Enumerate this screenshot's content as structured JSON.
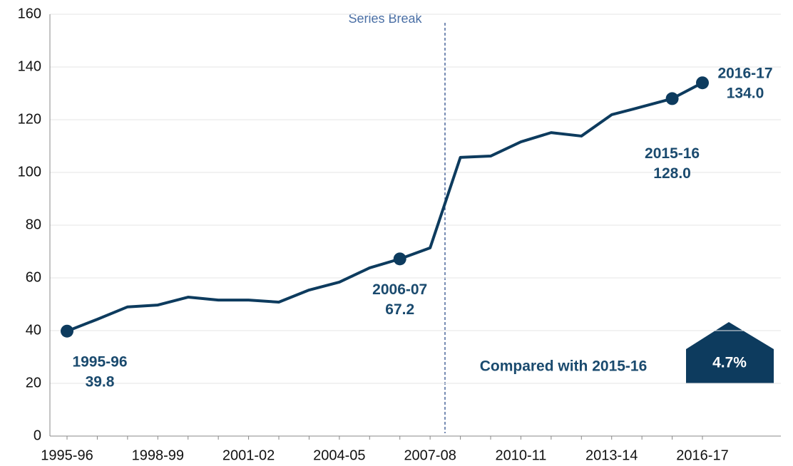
{
  "chart_data": {
    "type": "line",
    "categories": [
      "1995-96",
      null,
      null,
      "1998-99",
      null,
      null,
      "2001-02",
      null,
      null,
      "2004-05",
      null,
      null,
      "2007-08",
      null,
      null,
      "2010-11",
      null,
      null,
      "2013-14",
      null,
      null,
      "2016-17"
    ],
    "series": [
      {
        "color": "#0d3b5e",
        "values": [
          39.8,
          44.3,
          49.0,
          49.7,
          52.7,
          51.6,
          51.6,
          50.8,
          55.4,
          58.4,
          63.8,
          67.2,
          71.4,
          105.7,
          106.2,
          111.6,
          115.1,
          113.8,
          121.9,
          124.9,
          128.0,
          134.0
        ],
        "value_labels": [
          "39.8",
          null,
          null,
          null,
          null,
          null,
          null,
          null,
          null,
          null,
          null,
          "67.2",
          null,
          null,
          null,
          null,
          null,
          null,
          null,
          null,
          "128.0",
          "134.0"
        ],
        "point_labels": [
          "1995-96",
          null,
          null,
          null,
          null,
          null,
          null,
          null,
          null,
          null,
          null,
          "2006-07",
          null,
          null,
          null,
          null,
          null,
          null,
          null,
          null,
          "2015-16",
          "2016-17"
        ]
      }
    ],
    "ylim": [
      0,
      160
    ],
    "yticks": [
      0,
      20,
      40,
      60,
      80,
      100,
      120,
      140,
      160
    ],
    "grid": true,
    "series_break": "Series Break",
    "comparison": {
      "text": "Compared with 2015-16",
      "change": {
        "value": 4.7,
        "label": "4.7%"
      }
    }
  }
}
